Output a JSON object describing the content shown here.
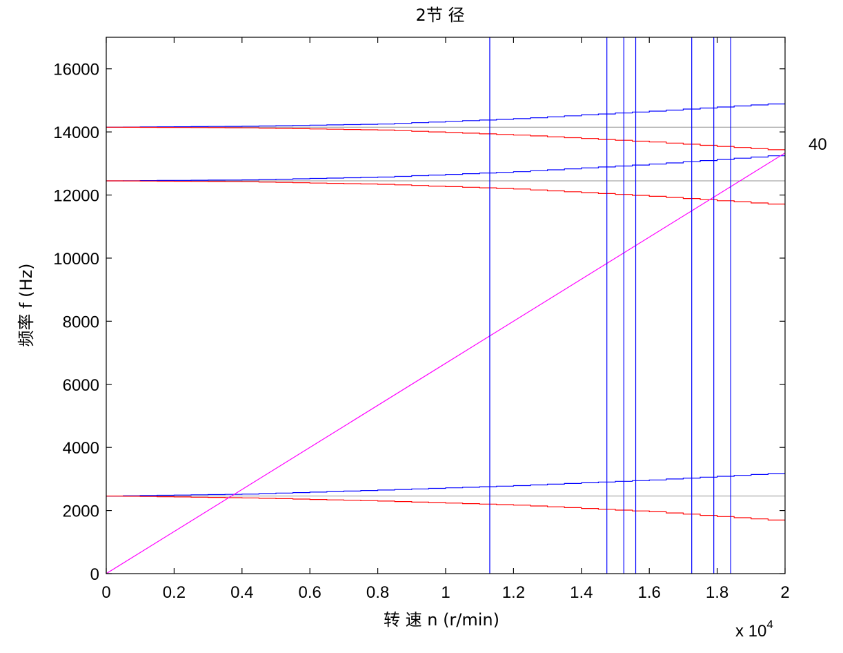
{
  "chart_data": {
    "type": "line",
    "title": "2节 径",
    "xlabel": "转 速   n (r/min)",
    "ylabel": "频率   f (Hz)",
    "x_multiplier": "x 10",
    "x_multiplier_exp": "4",
    "xlim": [
      0,
      20000
    ],
    "ylim": [
      0,
      17000
    ],
    "x_ticks": [
      0,
      2000,
      4000,
      6000,
      8000,
      10000,
      12000,
      14000,
      16000,
      18000,
      20000
    ],
    "x_tick_labels": [
      "0",
      "0.2",
      "0.4",
      "0.6",
      "0.8",
      "1",
      "1.2",
      "1.4",
      "1.6",
      "1.8",
      "2"
    ],
    "y_ticks": [
      0,
      2000,
      4000,
      6000,
      8000,
      10000,
      12000,
      14000,
      16000
    ],
    "y_tick_labels": [
      "0",
      "2000",
      "4000",
      "6000",
      "8000",
      "10000",
      "12000",
      "14000",
      "16000"
    ],
    "grid": false,
    "annotations": [
      {
        "text": "40"
      }
    ],
    "colors": {
      "forward": "#0000ff",
      "backward": "#ff0000",
      "static": "#909090",
      "excitation": "#ff00ff",
      "critical": "#0000ff"
    },
    "series": [
      {
        "kind": "static",
        "x": [
          0,
          20000
        ],
        "y": [
          2460,
          2460
        ]
      },
      {
        "kind": "static",
        "x": [
          0,
          20000
        ],
        "y": [
          12450,
          12450
        ]
      },
      {
        "kind": "static",
        "x": [
          0,
          20000
        ],
        "y": [
          14150,
          14150
        ]
      },
      {
        "kind": "forward",
        "x": [
          0,
          4000,
          8000,
          12000,
          16000,
          20000
        ],
        "y": [
          2460,
          2520,
          2650,
          2790,
          2970,
          3200
        ]
      },
      {
        "kind": "backward",
        "x": [
          0,
          4000,
          8000,
          12000,
          16000,
          20000
        ],
        "y": [
          2460,
          2400,
          2300,
          2170,
          1960,
          1660
        ]
      },
      {
        "kind": "forward",
        "x": [
          0,
          4000,
          8000,
          12000,
          16000,
          20000
        ],
        "y": [
          12450,
          12480,
          12570,
          12740,
          12980,
          13280
        ]
      },
      {
        "kind": "backward",
        "x": [
          0,
          4000,
          8000,
          12000,
          16000,
          20000
        ],
        "y": [
          12450,
          12420,
          12340,
          12190,
          11960,
          11680
        ]
      },
      {
        "kind": "forward",
        "x": [
          0,
          4000,
          8000,
          12000,
          16000,
          20000
        ],
        "y": [
          14150,
          14180,
          14250,
          14420,
          14660,
          14920
        ]
      },
      {
        "kind": "backward",
        "x": [
          0,
          4000,
          8000,
          12000,
          16000,
          20000
        ],
        "y": [
          14150,
          14130,
          14060,
          13900,
          13680,
          13400
        ]
      },
      {
        "kind": "excitation",
        "x": [
          0,
          20000
        ],
        "y": [
          0,
          13333
        ]
      }
    ],
    "critical_speeds": [
      11300,
      14750,
      15250,
      15600,
      17250,
      17900,
      18400
    ]
  }
}
